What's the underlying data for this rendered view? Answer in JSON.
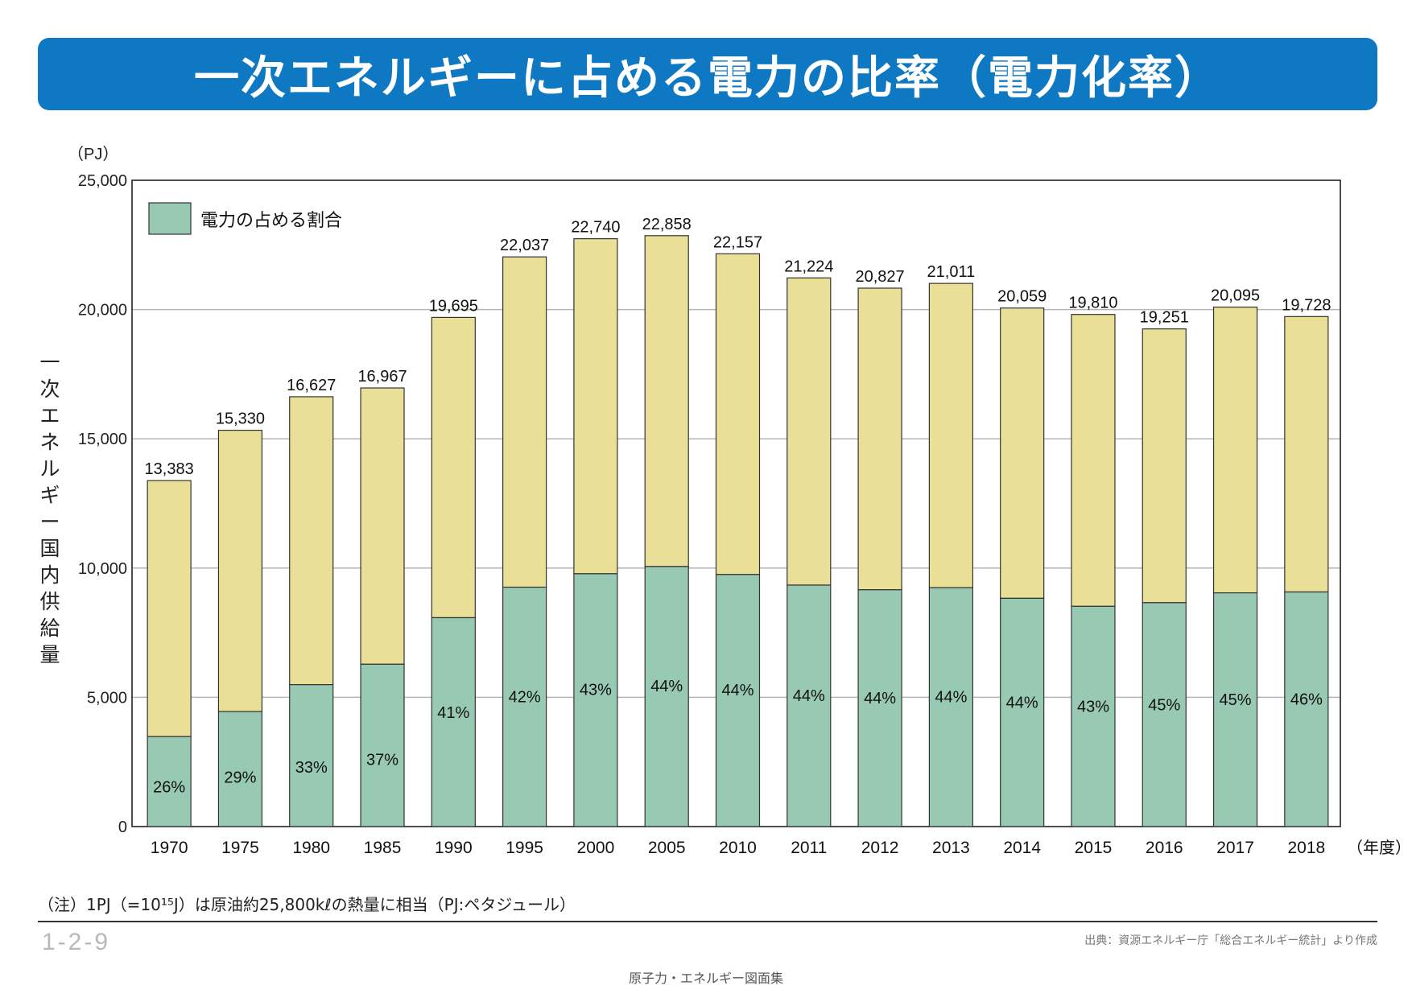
{
  "title": "一次エネルギーに占める電力の比率（電力化率）",
  "note": "（注）1PJ（=10¹⁵J）は原油約25,800kℓの熱量に相当（PJ:ペタジュール）",
  "figure_number": "1-2-9",
  "source": "出典：資源エネルギー庁「総合エネルギー統計」より作成",
  "footer": "原子力・エネルギー図面集",
  "colors": {
    "banner": "#0f78c2",
    "electricity": "#98c9b3",
    "total": "#eadf96",
    "grid": "#b5b5b5"
  },
  "chart_data": {
    "type": "bar",
    "stacked": true,
    "unit_label": "（PJ）",
    "ylabel": "一次エネルギー国内供給量",
    "xlabel": "（年度）",
    "ylim": [
      0,
      25000
    ],
    "y_ticks": [
      "0",
      "5,000",
      "10,000",
      "15,000",
      "20,000",
      "25,000"
    ],
    "legend": [
      "電力の占める割合"
    ],
    "legend_position": "top-left",
    "grid": true,
    "categories": [
      "1970",
      "1975",
      "1980",
      "1985",
      "1990",
      "1995",
      "2000",
      "2005",
      "2010",
      "2011",
      "2012",
      "2013",
      "2014",
      "2015",
      "2016",
      "2017",
      "2018"
    ],
    "totals": [
      13383,
      15330,
      16627,
      16967,
      19695,
      22037,
      22740,
      22858,
      22157,
      21224,
      20827,
      21011,
      20059,
      19810,
      19251,
      20095,
      19728
    ],
    "total_labels": [
      "13,383",
      "15,330",
      "16,627",
      "16,967",
      "19,695",
      "22,037",
      "22,740",
      "22,858",
      "22,157",
      "21,224",
      "20,827",
      "21,011",
      "20,059",
      "19,810",
      "19,251",
      "20,095",
      "19,728"
    ],
    "electricity_share_labels": [
      "26%",
      "29%",
      "33%",
      "37%",
      "41%",
      "42%",
      "43%",
      "44%",
      "44%",
      "44%",
      "44%",
      "44%",
      "44%",
      "43%",
      "45%",
      "45%",
      "46%"
    ],
    "electricity_values": [
      3480,
      4450,
      5490,
      6280,
      8080,
      9260,
      9780,
      10060,
      9750,
      9340,
      9160,
      9240,
      8830,
      8520,
      8660,
      9040,
      9075
    ]
  }
}
